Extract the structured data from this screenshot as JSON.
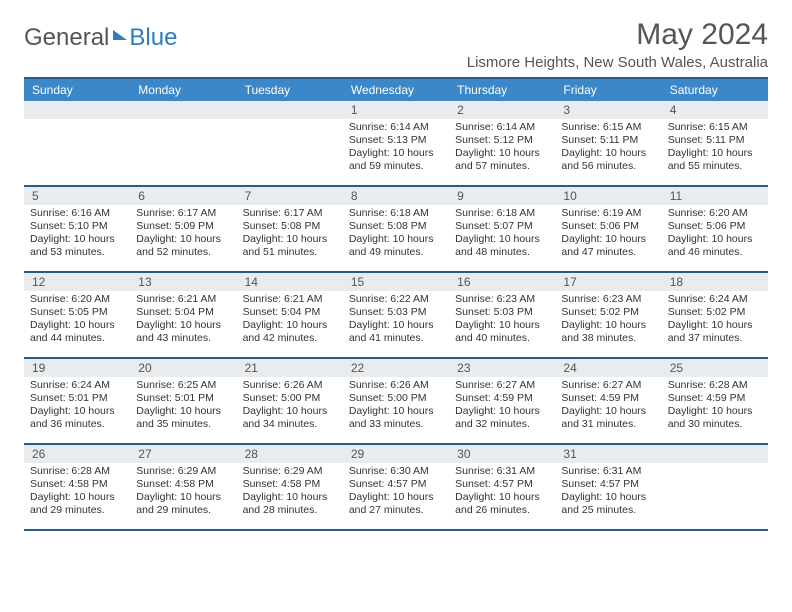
{
  "brand": {
    "text1": "General",
    "text2": "Blue"
  },
  "title": "May 2024",
  "location": "Lismore Heights, New South Wales, Australia",
  "colors": {
    "header_bg": "#3b87c8",
    "header_border": "#2a5a86",
    "daynum_bg": "#e8ecef",
    "text": "#333333",
    "muted": "#555555",
    "white": "#ffffff"
  },
  "day_labels": [
    "Sunday",
    "Monday",
    "Tuesday",
    "Wednesday",
    "Thursday",
    "Friday",
    "Saturday"
  ],
  "weeks": [
    [
      {
        "n": "",
        "sr": "",
        "ss": "",
        "dl": ""
      },
      {
        "n": "",
        "sr": "",
        "ss": "",
        "dl": ""
      },
      {
        "n": "",
        "sr": "",
        "ss": "",
        "dl": ""
      },
      {
        "n": "1",
        "sr": "6:14 AM",
        "ss": "5:13 PM",
        "dl": "10 hours and 59 minutes."
      },
      {
        "n": "2",
        "sr": "6:14 AM",
        "ss": "5:12 PM",
        "dl": "10 hours and 57 minutes."
      },
      {
        "n": "3",
        "sr": "6:15 AM",
        "ss": "5:11 PM",
        "dl": "10 hours and 56 minutes."
      },
      {
        "n": "4",
        "sr": "6:15 AM",
        "ss": "5:11 PM",
        "dl": "10 hours and 55 minutes."
      }
    ],
    [
      {
        "n": "5",
        "sr": "6:16 AM",
        "ss": "5:10 PM",
        "dl": "10 hours and 53 minutes."
      },
      {
        "n": "6",
        "sr": "6:17 AM",
        "ss": "5:09 PM",
        "dl": "10 hours and 52 minutes."
      },
      {
        "n": "7",
        "sr": "6:17 AM",
        "ss": "5:08 PM",
        "dl": "10 hours and 51 minutes."
      },
      {
        "n": "8",
        "sr": "6:18 AM",
        "ss": "5:08 PM",
        "dl": "10 hours and 49 minutes."
      },
      {
        "n": "9",
        "sr": "6:18 AM",
        "ss": "5:07 PM",
        "dl": "10 hours and 48 minutes."
      },
      {
        "n": "10",
        "sr": "6:19 AM",
        "ss": "5:06 PM",
        "dl": "10 hours and 47 minutes."
      },
      {
        "n": "11",
        "sr": "6:20 AM",
        "ss": "5:06 PM",
        "dl": "10 hours and 46 minutes."
      }
    ],
    [
      {
        "n": "12",
        "sr": "6:20 AM",
        "ss": "5:05 PM",
        "dl": "10 hours and 44 minutes."
      },
      {
        "n": "13",
        "sr": "6:21 AM",
        "ss": "5:04 PM",
        "dl": "10 hours and 43 minutes."
      },
      {
        "n": "14",
        "sr": "6:21 AM",
        "ss": "5:04 PM",
        "dl": "10 hours and 42 minutes."
      },
      {
        "n": "15",
        "sr": "6:22 AM",
        "ss": "5:03 PM",
        "dl": "10 hours and 41 minutes."
      },
      {
        "n": "16",
        "sr": "6:23 AM",
        "ss": "5:03 PM",
        "dl": "10 hours and 40 minutes."
      },
      {
        "n": "17",
        "sr": "6:23 AM",
        "ss": "5:02 PM",
        "dl": "10 hours and 38 minutes."
      },
      {
        "n": "18",
        "sr": "6:24 AM",
        "ss": "5:02 PM",
        "dl": "10 hours and 37 minutes."
      }
    ],
    [
      {
        "n": "19",
        "sr": "6:24 AM",
        "ss": "5:01 PM",
        "dl": "10 hours and 36 minutes."
      },
      {
        "n": "20",
        "sr": "6:25 AM",
        "ss": "5:01 PM",
        "dl": "10 hours and 35 minutes."
      },
      {
        "n": "21",
        "sr": "6:26 AM",
        "ss": "5:00 PM",
        "dl": "10 hours and 34 minutes."
      },
      {
        "n": "22",
        "sr": "6:26 AM",
        "ss": "5:00 PM",
        "dl": "10 hours and 33 minutes."
      },
      {
        "n": "23",
        "sr": "6:27 AM",
        "ss": "4:59 PM",
        "dl": "10 hours and 32 minutes."
      },
      {
        "n": "24",
        "sr": "6:27 AM",
        "ss": "4:59 PM",
        "dl": "10 hours and 31 minutes."
      },
      {
        "n": "25",
        "sr": "6:28 AM",
        "ss": "4:59 PM",
        "dl": "10 hours and 30 minutes."
      }
    ],
    [
      {
        "n": "26",
        "sr": "6:28 AM",
        "ss": "4:58 PM",
        "dl": "10 hours and 29 minutes."
      },
      {
        "n": "27",
        "sr": "6:29 AM",
        "ss": "4:58 PM",
        "dl": "10 hours and 29 minutes."
      },
      {
        "n": "28",
        "sr": "6:29 AM",
        "ss": "4:58 PM",
        "dl": "10 hours and 28 minutes."
      },
      {
        "n": "29",
        "sr": "6:30 AM",
        "ss": "4:57 PM",
        "dl": "10 hours and 27 minutes."
      },
      {
        "n": "30",
        "sr": "6:31 AM",
        "ss": "4:57 PM",
        "dl": "10 hours and 26 minutes."
      },
      {
        "n": "31",
        "sr": "6:31 AM",
        "ss": "4:57 PM",
        "dl": "10 hours and 25 minutes."
      },
      {
        "n": "",
        "sr": "",
        "ss": "",
        "dl": ""
      }
    ]
  ],
  "labels": {
    "sunrise": "Sunrise:",
    "sunset": "Sunset:",
    "daylight": "Daylight:"
  }
}
